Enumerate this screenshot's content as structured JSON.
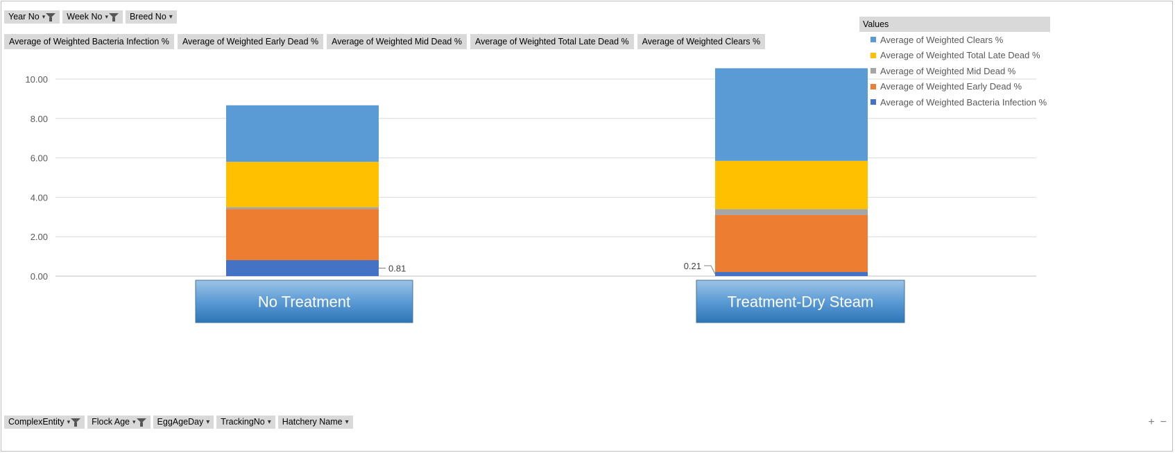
{
  "filters_top": [
    {
      "label": "Year No",
      "icon": "filter-icon"
    },
    {
      "label": "Week No",
      "icon": "filter-icon"
    },
    {
      "label": "Breed No",
      "icon": "dropdown-icon"
    }
  ],
  "value_fields": [
    "Average of Weighted Bacteria Infection %",
    "Average of Weighted Early Dead %",
    "Average of Weighted Mid Dead %",
    "Average of Weighted Total Late Dead %",
    "Average of Weighted Clears %"
  ],
  "filters_bottom": [
    {
      "label": "ComplexEntity",
      "icon": "filter-icon"
    },
    {
      "label": "Flock Age",
      "icon": "filter-icon"
    },
    {
      "label": "EggAgeDay",
      "icon": "dropdown-icon"
    },
    {
      "label": "TrackingNo",
      "icon": "dropdown-icon"
    },
    {
      "label": "Hatchery Name",
      "icon": "dropdown-icon"
    }
  ],
  "legend": {
    "title": "Values",
    "items": [
      {
        "name": "Average of Weighted Clears %",
        "color": "#5b9bd5"
      },
      {
        "name": "Average of Weighted Total Late Dead %",
        "color": "#ffc000"
      },
      {
        "name": "Average of Weighted Mid Dead %",
        "color": "#a5a5a5"
      },
      {
        "name": "Average of Weighted Early Dead %",
        "color": "#ed7d31"
      },
      {
        "name": "Average of Weighted Bacteria Infection %",
        "color": "#4472c4"
      }
    ]
  },
  "zoom": {
    "plus": "+",
    "minus": "−"
  },
  "chart_data": {
    "type": "bar",
    "stacked": true,
    "categories": [
      "No Treatment",
      "Treatment-Dry Steam"
    ],
    "series": [
      {
        "name": "Average of Weighted Bacteria Infection %",
        "color": "#4472c4",
        "values": [
          0.81,
          0.21
        ]
      },
      {
        "name": "Average of Weighted Early Dead %",
        "color": "#ed7d31",
        "values": [
          2.59,
          2.89
        ]
      },
      {
        "name": "Average of Weighted Mid Dead %",
        "color": "#a5a5a5",
        "values": [
          0.1,
          0.3
        ]
      },
      {
        "name": "Average of Weighted Total Late Dead %",
        "color": "#ffc000",
        "values": [
          2.3,
          2.45
        ]
      },
      {
        "name": "Average of Weighted Clears %",
        "color": "#5b9bd5",
        "values": [
          2.87,
          4.7
        ]
      }
    ],
    "data_labels": [
      {
        "series": 0,
        "category": 0,
        "text": "0.81"
      },
      {
        "series": 0,
        "category": 1,
        "text": "0.21"
      }
    ],
    "yticks": [
      "0.00",
      "2.00",
      "4.00",
      "6.00",
      "8.00",
      "10.00"
    ],
    "ylim": [
      0,
      10
    ],
    "grid": true,
    "legend_position": "top-right"
  }
}
